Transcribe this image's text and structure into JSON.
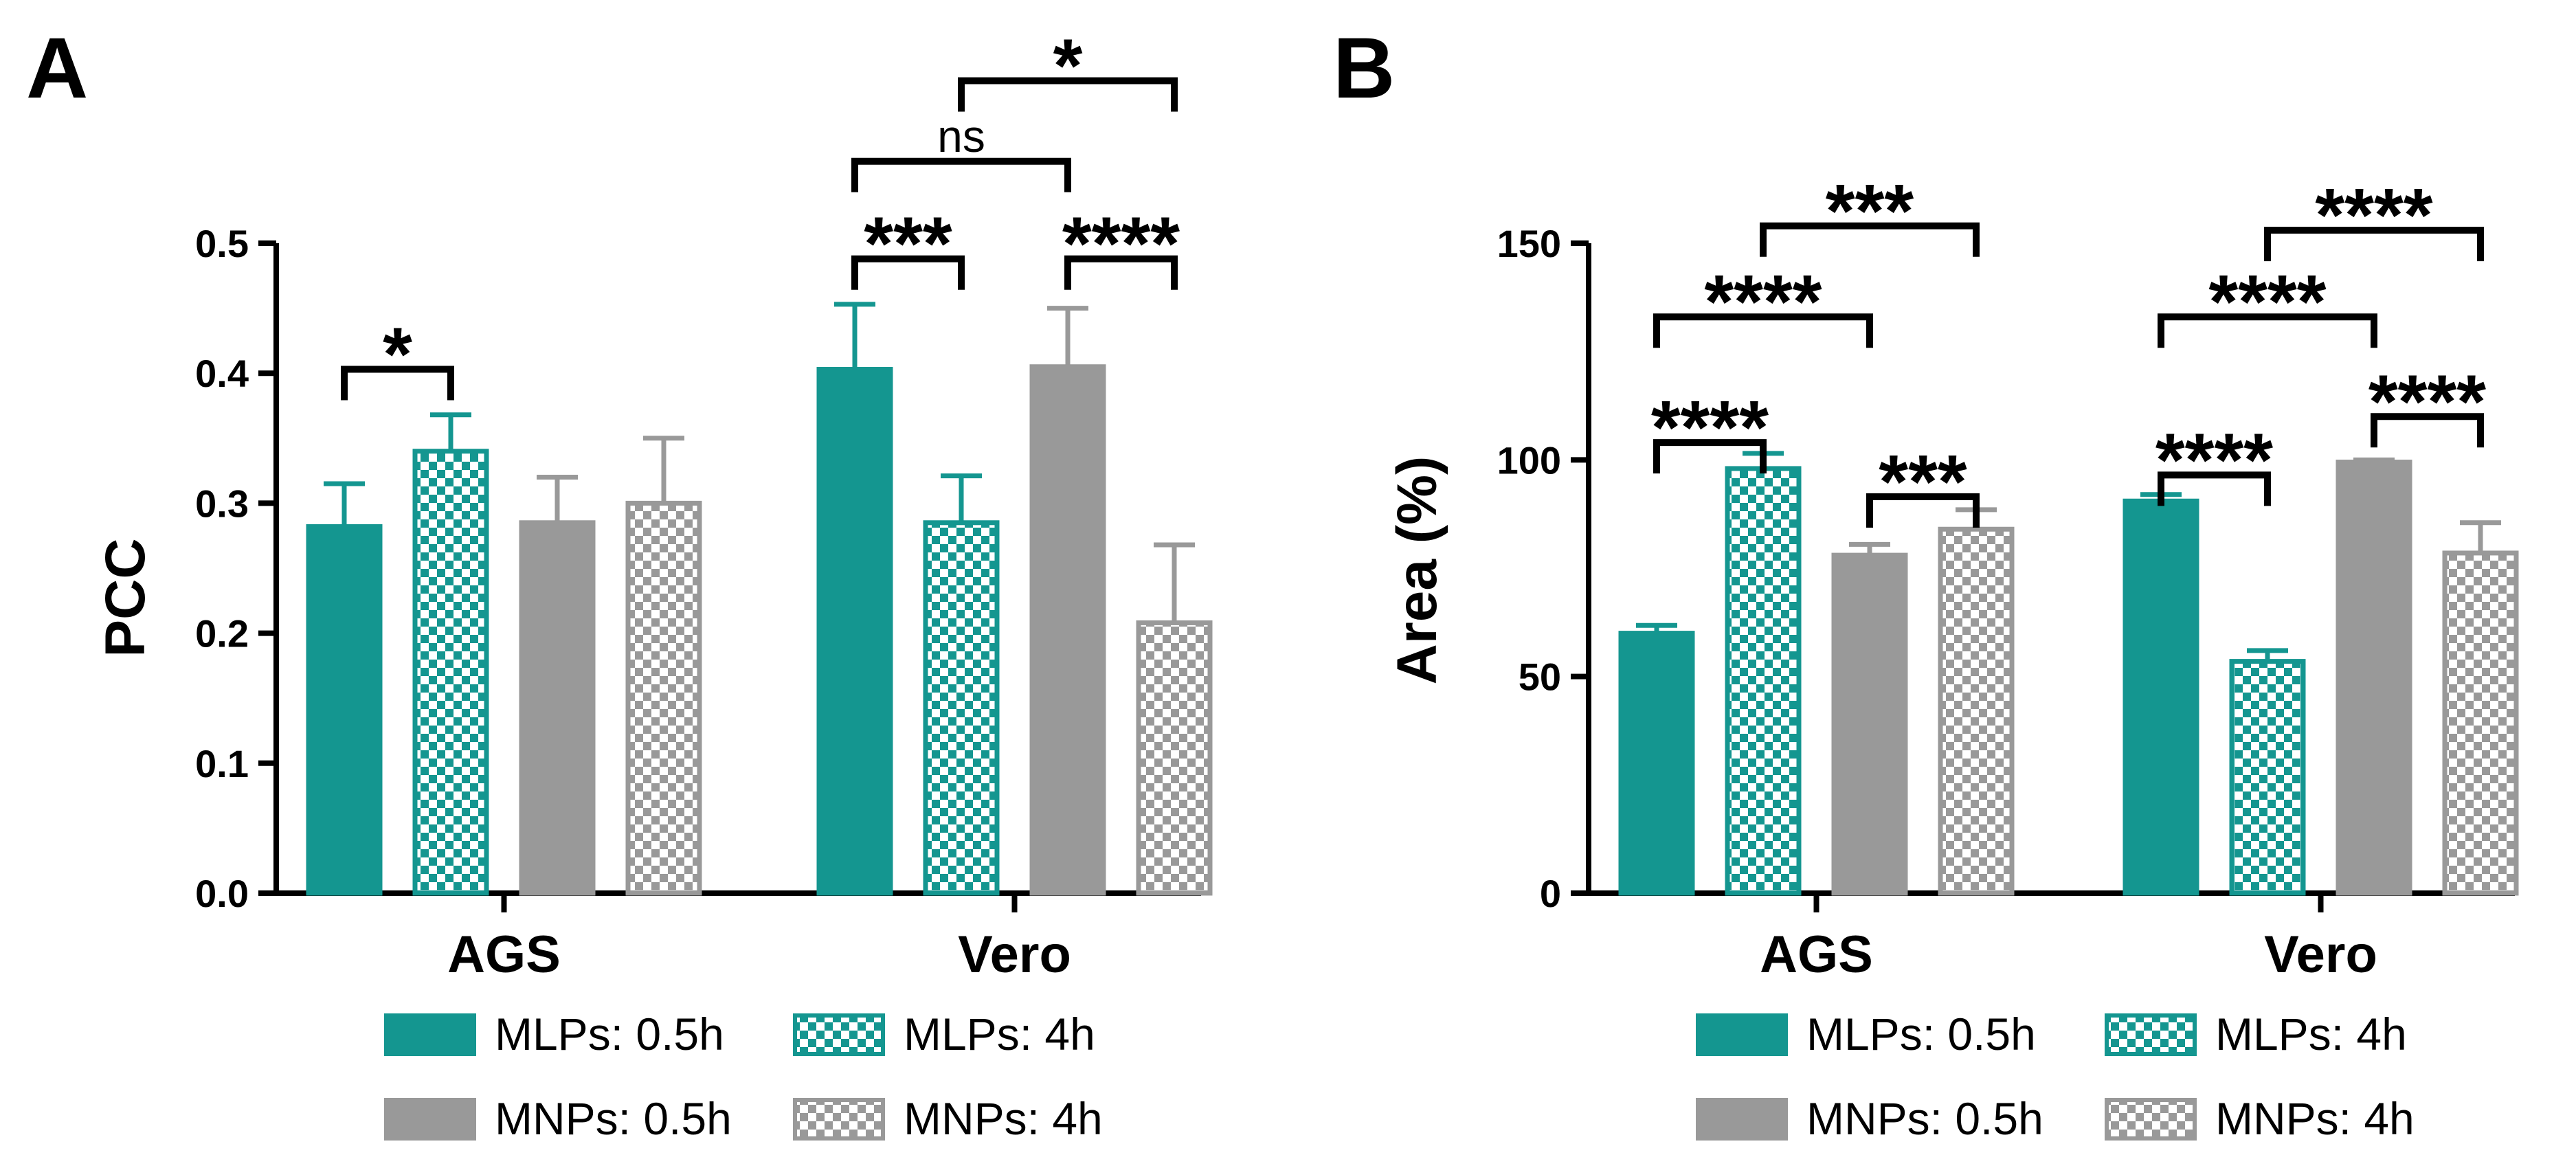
{
  "colors": {
    "teal": "#149690",
    "gray": "#999999",
    "axis": "#000000"
  },
  "legend": [
    {
      "label": "MLPs: 0.5h",
      "pattern": "solid",
      "color": "teal"
    },
    {
      "label": "MLPs: 4h",
      "pattern": "checker",
      "color": "teal"
    },
    {
      "label": "MNPs: 0.5h",
      "pattern": "solid",
      "color": "gray"
    },
    {
      "label": "MNPs: 4h",
      "pattern": "checker",
      "color": "gray"
    }
  ],
  "chart_data": [
    {
      "panel": "A",
      "type": "bar",
      "ylabel": "PCC",
      "ylim": [
        0,
        0.5
      ],
      "yticks": [
        "0.0",
        "0.1",
        "0.2",
        "0.3",
        "0.4",
        "0.5"
      ],
      "categories": [
        "AGS",
        "Vero"
      ],
      "series": [
        {
          "name": "MLPs: 0.5h",
          "values": [
            0.282,
            0.403
          ],
          "errors": [
            0.033,
            0.05
          ]
        },
        {
          "name": "MLPs: 4h",
          "values": [
            0.34,
            0.285
          ],
          "errors": [
            0.028,
            0.036
          ]
        },
        {
          "name": "MNPs: 0.5h",
          "values": [
            0.285,
            0.405
          ],
          "errors": [
            0.035,
            0.045
          ]
        },
        {
          "name": "MNPs: 4h",
          "values": [
            0.3,
            0.208
          ],
          "errors": [
            0.05,
            0.06
          ]
        }
      ],
      "significance": [
        {
          "label": "*",
          "category": 0,
          "from": 0,
          "to": 1,
          "y": 0.403
        },
        {
          "label": "***",
          "category": 1,
          "from": 0,
          "to": 1,
          "y": 0.488
        },
        {
          "label": "****",
          "category": 1,
          "from": 2,
          "to": 3,
          "y": 0.488
        },
        {
          "label": "ns",
          "category": 1,
          "from": 0,
          "to": 2,
          "y": 0.563
        },
        {
          "label": "*",
          "category": 1,
          "from": 1,
          "to": 3,
          "y": 0.625
        }
      ]
    },
    {
      "panel": "B",
      "type": "bar",
      "ylabel": "Area (%)",
      "ylim": [
        0,
        150
      ],
      "yticks": [
        "0",
        "50",
        "100",
        "150"
      ],
      "categories": [
        "AGS",
        "Vero"
      ],
      "series": [
        {
          "name": "MLPs: 0.5h",
          "values": [
            60,
            90.5
          ],
          "errors": [
            1.8,
            1.5
          ]
        },
        {
          "name": "MLPs: 4h",
          "values": [
            98,
            53.5
          ],
          "errors": [
            3.5,
            2.5
          ]
        },
        {
          "name": "MNPs: 0.5h",
          "values": [
            78,
            99.5
          ],
          "errors": [
            2.5,
            0.5
          ]
        },
        {
          "name": "MNPs: 4h",
          "values": [
            84,
            78.5
          ],
          "errors": [
            4.5,
            7
          ]
        }
      ],
      "significance": [
        {
          "label": "****",
          "category": 0,
          "from": 0,
          "to": 1,
          "y": 104
        },
        {
          "label": "***",
          "category": 0,
          "from": 2,
          "to": 3,
          "y": 91.5
        },
        {
          "label": "****",
          "category": 0,
          "from": 0,
          "to": 2,
          "y": 133
        },
        {
          "label": "***",
          "category": 0,
          "from": 1,
          "to": 3,
          "y": 154
        },
        {
          "label": "****",
          "category": 1,
          "from": 0,
          "to": 1,
          "y": 96.5
        },
        {
          "label": "****",
          "category": 1,
          "from": 2,
          "to": 3,
          "y": 110
        },
        {
          "label": "****",
          "category": 1,
          "from": 0,
          "to": 2,
          "y": 133
        },
        {
          "label": "****",
          "category": 1,
          "from": 1,
          "to": 3,
          "y": 153
        }
      ]
    }
  ]
}
